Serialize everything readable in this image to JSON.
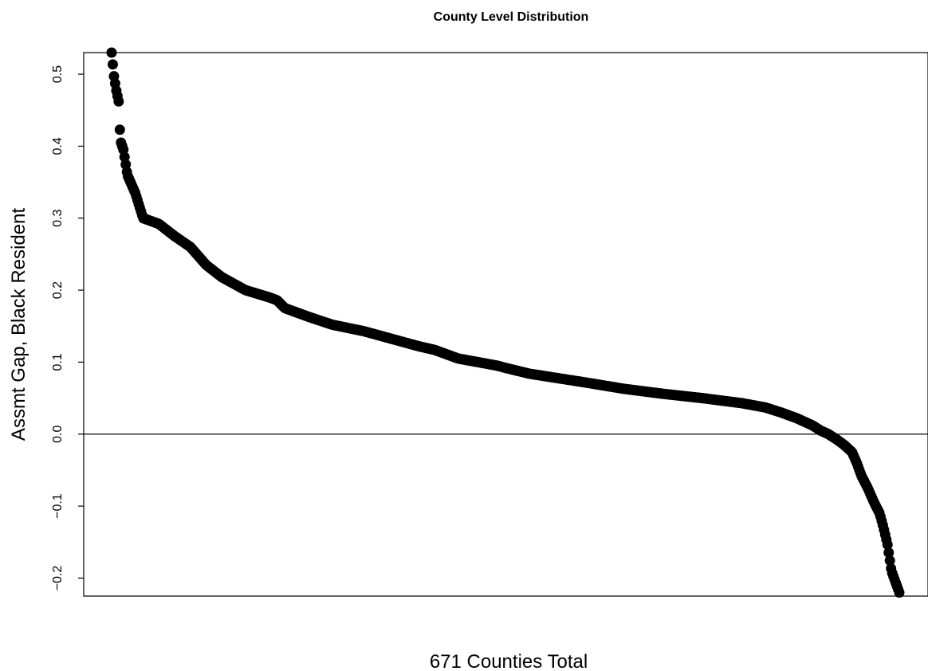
{
  "chart_data": {
    "type": "scatter",
    "title": "County Level Distribution",
    "xlabel": "671  Counties Total",
    "ylabel": "Assmt Gap, Black Resident",
    "n": 671,
    "ylim": [
      -0.225,
      0.53
    ],
    "yticks": [
      -0.2,
      -0.1,
      0.0,
      0.1,
      0.2,
      0.3,
      0.4,
      0.5
    ],
    "ytick_labels": [
      "−0.2",
      "−0.1",
      "0.0",
      "0.1",
      "0.2",
      "0.3",
      "0.4",
      "0.5"
    ],
    "hline": 0,
    "grid": false,
    "point_color": "#000000",
    "sorted": "descending",
    "quantiles": [
      [
        0.0,
        0.53
      ],
      [
        0.003,
        0.497
      ],
      [
        0.006,
        0.477
      ],
      [
        0.009,
        0.462
      ],
      [
        0.011,
        0.408
      ],
      [
        0.015,
        0.395
      ],
      [
        0.02,
        0.36
      ],
      [
        0.03,
        0.335
      ],
      [
        0.04,
        0.3
      ],
      [
        0.06,
        0.292
      ],
      [
        0.08,
        0.275
      ],
      [
        0.1,
        0.26
      ],
      [
        0.12,
        0.235
      ],
      [
        0.14,
        0.218
      ],
      [
        0.17,
        0.2
      ],
      [
        0.2,
        0.19
      ],
      [
        0.21,
        0.186
      ],
      [
        0.22,
        0.175
      ],
      [
        0.25,
        0.163
      ],
      [
        0.28,
        0.152
      ],
      [
        0.32,
        0.143
      ],
      [
        0.35,
        0.134
      ],
      [
        0.39,
        0.122
      ],
      [
        0.41,
        0.117
      ],
      [
        0.44,
        0.105
      ],
      [
        0.49,
        0.095
      ],
      [
        0.5,
        0.092
      ],
      [
        0.53,
        0.084
      ],
      [
        0.6,
        0.072
      ],
      [
        0.65,
        0.063
      ],
      [
        0.7,
        0.056
      ],
      [
        0.75,
        0.05
      ],
      [
        0.8,
        0.043
      ],
      [
        0.83,
        0.037
      ],
      [
        0.85,
        0.03
      ],
      [
        0.87,
        0.022
      ],
      [
        0.89,
        0.012
      ],
      [
        0.9,
        0.005
      ],
      [
        0.91,
        0.0
      ],
      [
        0.92,
        -0.007
      ],
      [
        0.93,
        -0.015
      ],
      [
        0.94,
        -0.025
      ],
      [
        0.946,
        -0.04
      ],
      [
        0.952,
        -0.058
      ],
      [
        0.96,
        -0.075
      ],
      [
        0.968,
        -0.095
      ],
      [
        0.975,
        -0.11
      ],
      [
        0.98,
        -0.13
      ],
      [
        0.985,
        -0.153
      ],
      [
        0.99,
        -0.19
      ],
      [
        0.995,
        -0.205
      ],
      [
        1.0,
        -0.22
      ]
    ]
  }
}
